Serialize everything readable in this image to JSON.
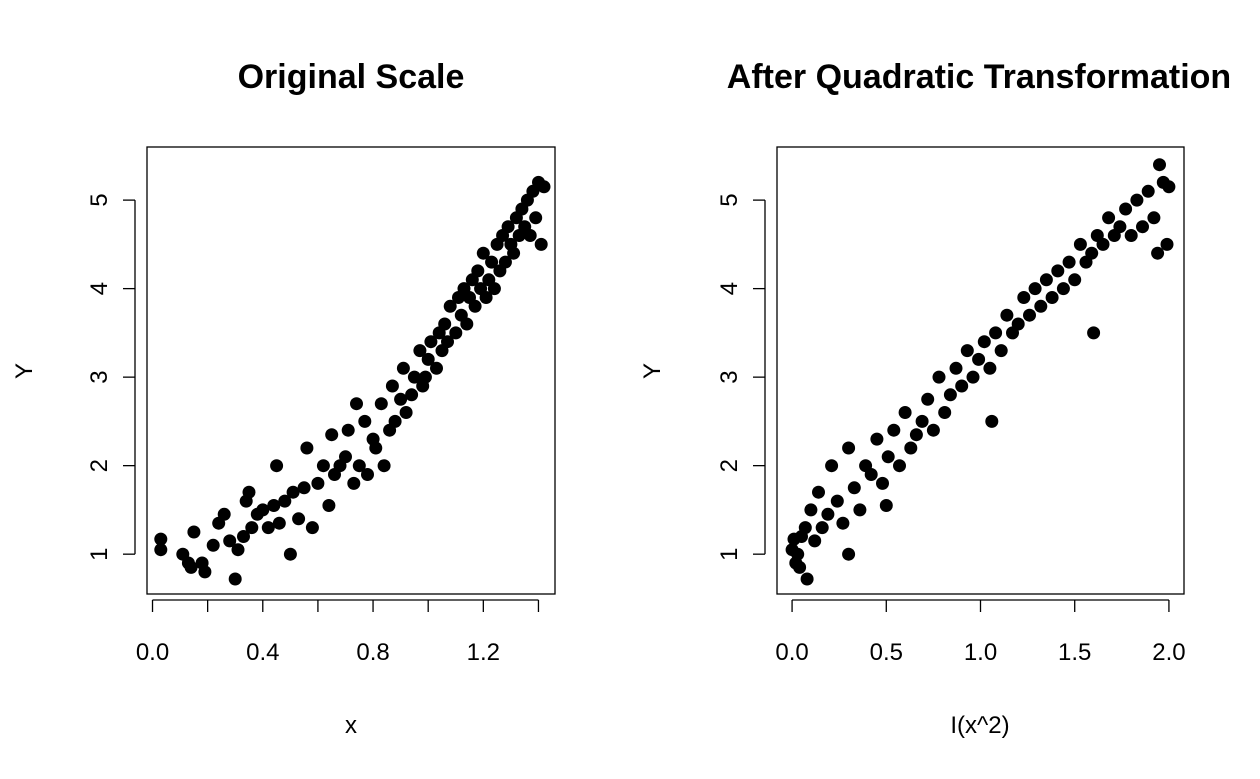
{
  "chart_data": [
    {
      "type": "scatter",
      "title": "Original Scale",
      "xlabel": "x",
      "ylabel": "Y",
      "xlim": [
        -0.02,
        1.46
      ],
      "ylim": [
        0.55,
        5.6
      ],
      "xticks": [
        0.0,
        0.2,
        0.4,
        0.6,
        0.8,
        1.0,
        1.2,
        1.4
      ],
      "xtick_labels": [
        "0.0",
        "",
        "0.4",
        "",
        "0.8",
        "",
        "1.2",
        ""
      ],
      "yticks": [
        1,
        2,
        3,
        4,
        5
      ],
      "ytick_labels": [
        "1",
        "2",
        "3",
        "4",
        "5"
      ],
      "grid": false,
      "marker_color": "#000000",
      "points": {
        "x": [
          0.03,
          0.03,
          0.11,
          0.13,
          0.14,
          0.15,
          0.18,
          0.19,
          0.22,
          0.24,
          0.26,
          0.28,
          0.3,
          0.31,
          0.33,
          0.34,
          0.35,
          0.36,
          0.38,
          0.4,
          0.42,
          0.44,
          0.45,
          0.46,
          0.48,
          0.5,
          0.51,
          0.53,
          0.55,
          0.56,
          0.58,
          0.6,
          0.62,
          0.64,
          0.65,
          0.66,
          0.68,
          0.7,
          0.71,
          0.73,
          0.74,
          0.75,
          0.77,
          0.78,
          0.8,
          0.81,
          0.83,
          0.84,
          0.86,
          0.87,
          0.88,
          0.9,
          0.91,
          0.92,
          0.94,
          0.95,
          0.97,
          0.98,
          0.99,
          1.0,
          1.01,
          1.03,
          1.04,
          1.05,
          1.06,
          1.07,
          1.08,
          1.1,
          1.11,
          1.12,
          1.13,
          1.14,
          1.15,
          1.16,
          1.17,
          1.18,
          1.19,
          1.2,
          1.21,
          1.22,
          1.23,
          1.24,
          1.25,
          1.26,
          1.27,
          1.28,
          1.29,
          1.3,
          1.31,
          1.32,
          1.33,
          1.34,
          1.35,
          1.36,
          1.37,
          1.38,
          1.39,
          1.4,
          1.41,
          1.42
        ],
        "y": [
          1.05,
          1.17,
          1.0,
          0.9,
          0.85,
          1.25,
          0.9,
          0.8,
          1.1,
          1.35,
          1.45,
          1.15,
          0.72,
          1.05,
          1.2,
          1.6,
          1.7,
          1.3,
          1.45,
          1.5,
          1.3,
          1.55,
          2.0,
          1.35,
          1.6,
          1.0,
          1.7,
          1.4,
          1.75,
          2.2,
          1.3,
          1.8,
          2.0,
          1.55,
          2.35,
          1.9,
          2.0,
          2.1,
          2.4,
          1.8,
          2.7,
          2.0,
          2.5,
          1.9,
          2.3,
          2.2,
          2.7,
          2.0,
          2.4,
          2.9,
          2.5,
          2.75,
          3.1,
          2.6,
          2.8,
          3.0,
          3.3,
          2.9,
          3.0,
          3.2,
          3.4,
          3.1,
          3.5,
          3.3,
          3.6,
          3.4,
          3.8,
          3.5,
          3.9,
          3.7,
          4.0,
          3.6,
          3.9,
          4.1,
          3.8,
          4.2,
          4.0,
          4.4,
          3.9,
          4.1,
          4.3,
          4.0,
          4.5,
          4.2,
          4.6,
          4.3,
          4.7,
          4.5,
          4.4,
          4.8,
          4.6,
          4.9,
          4.7,
          5.0,
          4.6,
          5.1,
          4.8,
          5.2,
          4.5,
          5.15
        ]
      }
    },
    {
      "type": "scatter",
      "title": "After Quadratic Transformation",
      "xlabel": "I(x^2)",
      "ylabel": "Y",
      "xlim": [
        -0.08,
        2.08
      ],
      "ylim": [
        0.55,
        5.6
      ],
      "xticks": [
        0.0,
        0.5,
        1.0,
        1.5,
        2.0
      ],
      "xtick_labels": [
        "0.0",
        "0.5",
        "1.0",
        "1.5",
        "2.0"
      ],
      "yticks": [
        1,
        2,
        3,
        4,
        5
      ],
      "ytick_labels": [
        "1",
        "2",
        "3",
        "4",
        "5"
      ],
      "grid": false,
      "marker_color": "#000000",
      "points": {
        "x": [
          0.0,
          0.01,
          0.02,
          0.03,
          0.04,
          0.05,
          0.07,
          0.08,
          0.1,
          0.12,
          0.14,
          0.16,
          0.19,
          0.21,
          0.24,
          0.27,
          0.3,
          0.33,
          0.36,
          0.39,
          0.42,
          0.45,
          0.48,
          0.51,
          0.54,
          0.57,
          0.6,
          0.63,
          0.66,
          0.69,
          0.72,
          0.75,
          0.78,
          0.81,
          0.84,
          0.87,
          0.9,
          0.93,
          0.96,
          0.99,
          1.02,
          1.05,
          1.08,
          1.11,
          1.14,
          1.17,
          1.2,
          1.23,
          1.26,
          1.29,
          1.32,
          1.35,
          1.38,
          1.41,
          1.44,
          1.47,
          1.5,
          1.53,
          1.56,
          1.59,
          1.62,
          1.65,
          1.68,
          1.71,
          1.74,
          1.77,
          1.8,
          1.83,
          1.86,
          1.89,
          1.92,
          1.95,
          1.97,
          1.99,
          2.0,
          1.94,
          1.6,
          1.06,
          0.5,
          0.3
        ],
        "y": [
          1.05,
          1.17,
          0.9,
          1.0,
          0.85,
          1.2,
          1.3,
          0.72,
          1.5,
          1.15,
          1.7,
          1.3,
          1.45,
          2.0,
          1.6,
          1.35,
          2.2,
          1.75,
          1.5,
          2.0,
          1.9,
          2.3,
          1.8,
          2.1,
          2.4,
          2.0,
          2.6,
          2.2,
          2.35,
          2.5,
          2.75,
          2.4,
          3.0,
          2.6,
          2.8,
          3.1,
          2.9,
          3.3,
          3.0,
          3.2,
          3.4,
          3.1,
          3.5,
          3.3,
          3.7,
          3.5,
          3.6,
          3.9,
          3.7,
          4.0,
          3.8,
          4.1,
          3.9,
          4.2,
          4.0,
          4.3,
          4.1,
          4.5,
          4.3,
          4.4,
          4.6,
          4.5,
          4.8,
          4.6,
          4.7,
          4.9,
          4.6,
          5.0,
          4.7,
          5.1,
          4.8,
          5.4,
          5.2,
          4.5,
          5.15,
          4.4,
          3.5,
          2.5,
          1.55,
          1.0
        ]
      }
    }
  ]
}
